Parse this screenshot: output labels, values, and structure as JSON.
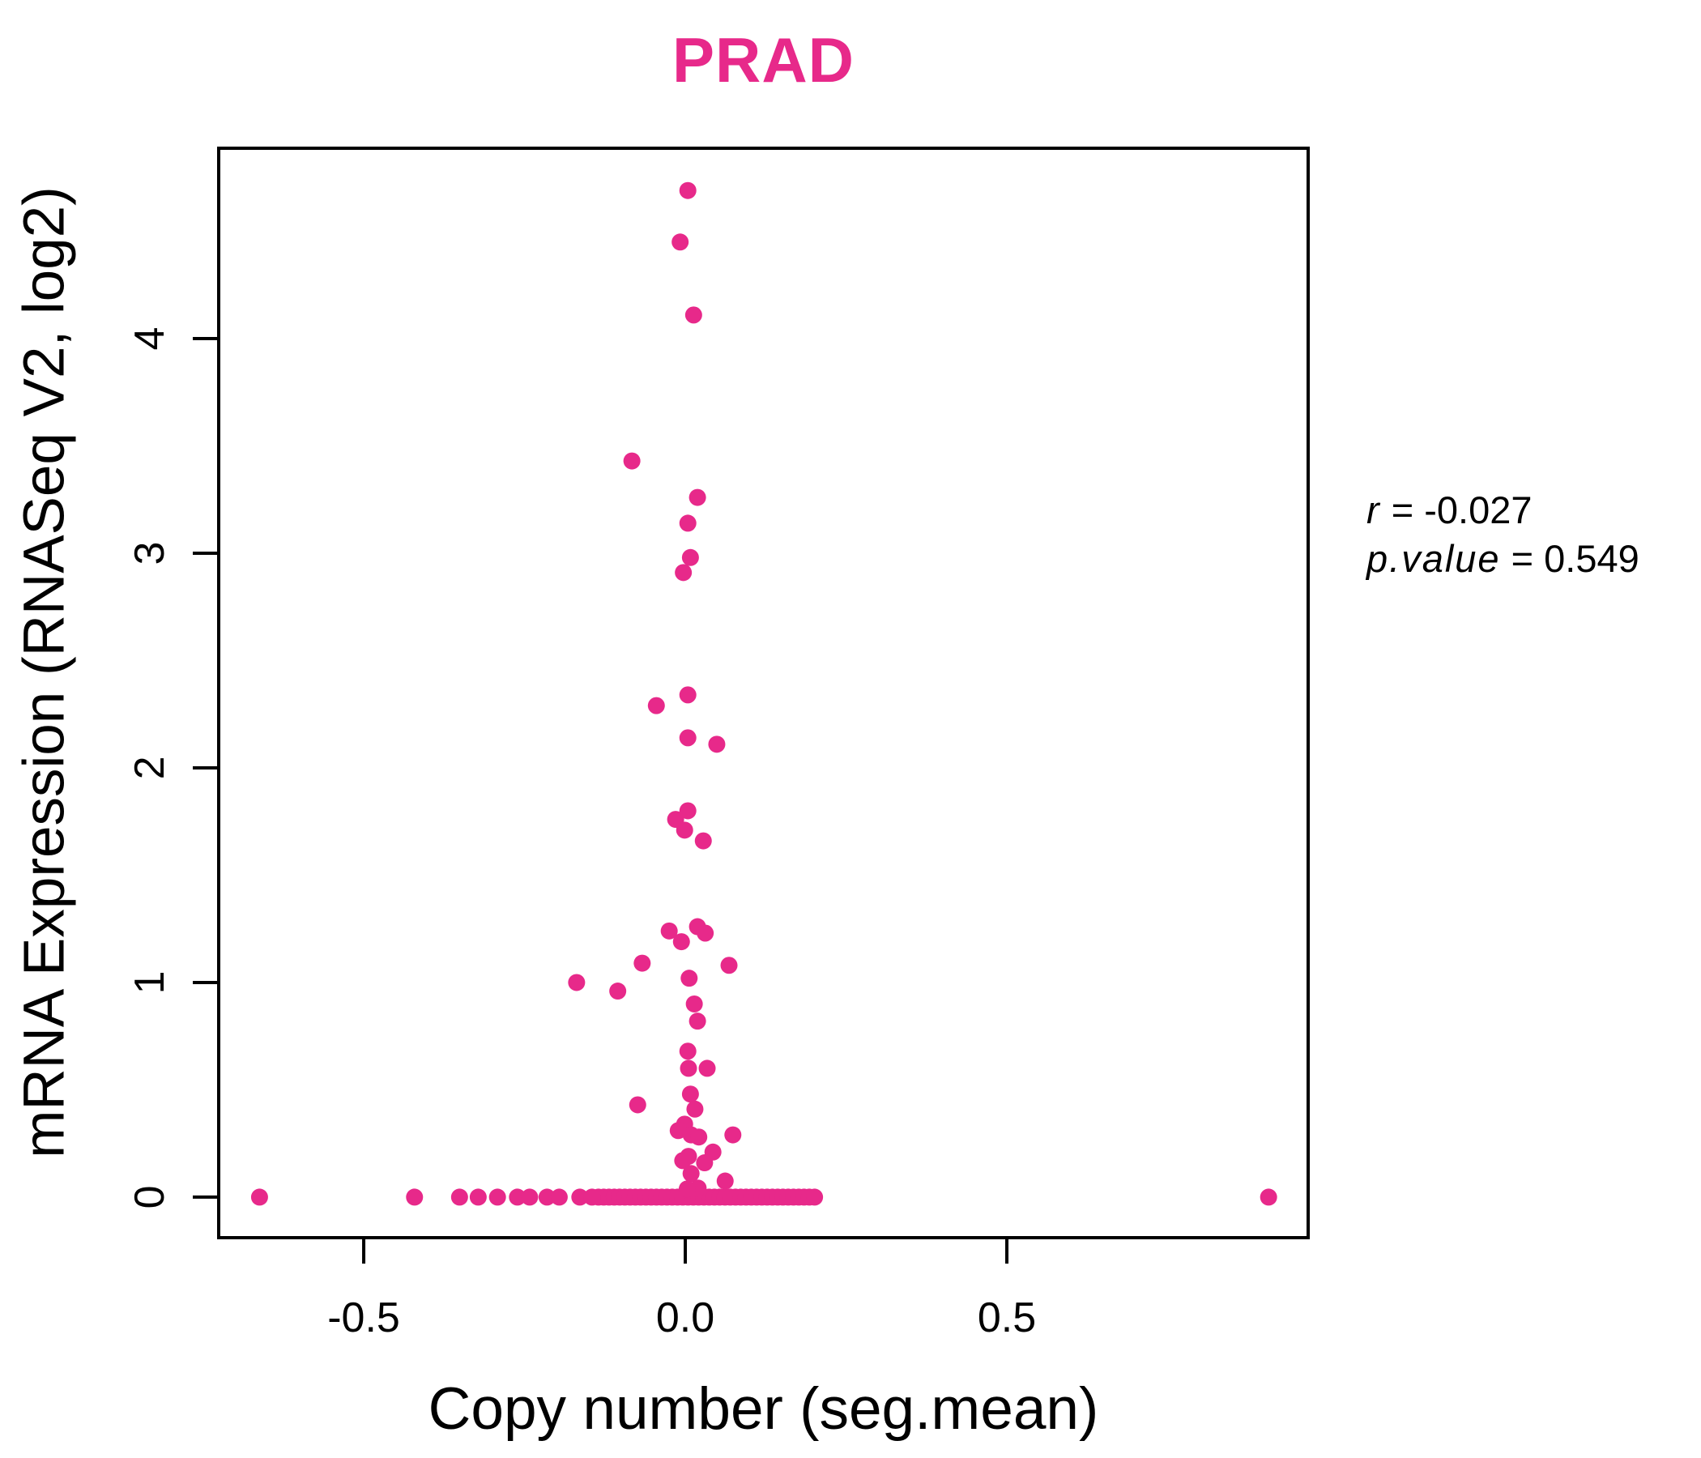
{
  "chart_data": {
    "type": "scatter",
    "title": "PRAD",
    "xlabel": "Copy number (seg.mean)",
    "ylabel": "mRNA Expression (RNASeq V2, log2)",
    "xlim": [
      -0.7255,
      0.9685
    ],
    "ylim": [
      -0.189,
      4.887
    ],
    "xticks": [
      -0.5,
      0.0,
      0.5
    ],
    "xtick_labels": [
      "-0.5",
      "0.0",
      "0.5"
    ],
    "yticks": [
      0,
      1,
      2,
      3,
      4
    ],
    "ytick_labels": [
      "0",
      "1",
      "2",
      "3",
      "4"
    ],
    "grid": false,
    "legend": null,
    "point_color": "#E7298A",
    "title_color": "#E7298A",
    "axis_color": "#000000",
    "point_radius": 10.5,
    "points": [
      [
        0.004,
        4.69
      ],
      [
        -0.008,
        4.45
      ],
      [
        0.013,
        4.11
      ],
      [
        -0.083,
        3.43
      ],
      [
        0.019,
        3.26
      ],
      [
        0.004,
        3.14
      ],
      [
        0.008,
        2.98
      ],
      [
        -0.003,
        2.91
      ],
      [
        0.004,
        2.34
      ],
      [
        -0.045,
        2.29
      ],
      [
        0.004,
        2.14
      ],
      [
        0.049,
        2.11
      ],
      [
        0.004,
        1.8
      ],
      [
        -0.015,
        1.76
      ],
      [
        -0.001,
        1.71
      ],
      [
        0.028,
        1.66
      ],
      [
        0.019,
        1.26
      ],
      [
        -0.025,
        1.24
      ],
      [
        0.031,
        1.23
      ],
      [
        -0.006,
        1.19
      ],
      [
        -0.067,
        1.09
      ],
      [
        0.068,
        1.08
      ],
      [
        0.006,
        1.02
      ],
      [
        -0.169,
        1.0
      ],
      [
        -0.105,
        0.96
      ],
      [
        0.014,
        0.9
      ],
      [
        0.019,
        0.82
      ],
      [
        0.004,
        0.68
      ],
      [
        0.005,
        0.6
      ],
      [
        0.034,
        0.6
      ],
      [
        0.008,
        0.48
      ],
      [
        -0.074,
        0.43
      ],
      [
        0.015,
        0.41
      ],
      [
        -0.001,
        0.34
      ],
      [
        -0.011,
        0.31
      ],
      [
        0.009,
        0.29
      ],
      [
        0.021,
        0.28
      ],
      [
        0.074,
        0.29
      ],
      [
        0.043,
        0.21
      ],
      [
        0.005,
        0.19
      ],
      [
        -0.004,
        0.17
      ],
      [
        0.03,
        0.16
      ],
      [
        0.009,
        0.11
      ],
      [
        0.062,
        0.075
      ],
      [
        0.02,
        0.042
      ],
      [
        0.003,
        0.038
      ],
      [
        -0.662,
        0
      ],
      [
        -0.421,
        0
      ],
      [
        -0.351,
        0
      ],
      [
        -0.322,
        0
      ],
      [
        -0.292,
        0
      ],
      [
        -0.261,
        0
      ],
      [
        -0.242,
        0
      ],
      [
        -0.215,
        0
      ],
      [
        -0.196,
        0
      ],
      [
        -0.164,
        0
      ],
      [
        -0.145,
        0
      ],
      [
        0.907,
        0
      ]
    ],
    "baseline_band": {
      "y": 0,
      "x_start": -0.135,
      "x_end": 0.201,
      "count": 42
    },
    "annotation": {
      "lines": [
        {
          "name": "r-line",
          "segments": [
            {
              "text": "r",
              "italic": true
            },
            {
              "text": " = -0.027",
              "italic": false
            }
          ]
        },
        {
          "name": "pvalue-line",
          "segments": [
            {
              "text": "p.value",
              "italic": true
            },
            {
              "text": " = 0.549",
              "italic": false
            }
          ]
        }
      ]
    }
  }
}
